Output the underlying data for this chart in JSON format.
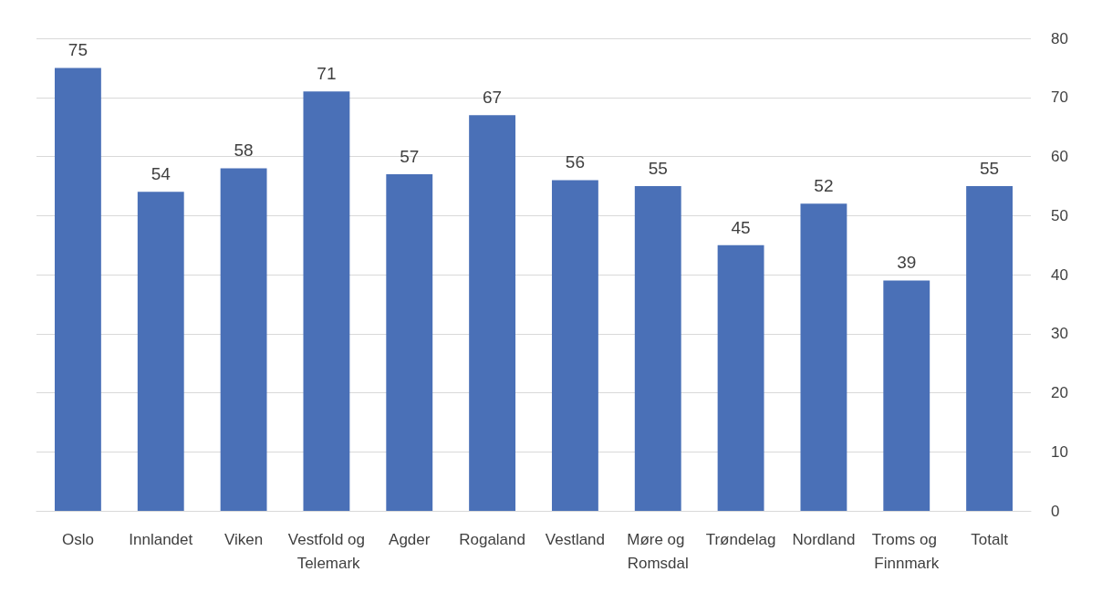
{
  "chart_data": {
    "type": "bar",
    "categories": [
      "Oslo",
      "Innlandet",
      "Viken",
      "Vestfold og Telemark",
      "Agder",
      "Rogaland",
      "Vestland",
      "Møre og Romsdal",
      "Trøndelag",
      "Nordland",
      "Troms og Finnmark",
      "Totalt"
    ],
    "values": [
      75,
      54,
      58,
      71,
      57,
      67,
      56,
      55,
      45,
      52,
      39,
      55
    ],
    "color": "#4a70b7",
    "ylim": [
      0,
      80
    ],
    "yticks": [
      0,
      10,
      20,
      30,
      40,
      50,
      60,
      70,
      80
    ],
    "grid": "y",
    "data_labels": true
  }
}
